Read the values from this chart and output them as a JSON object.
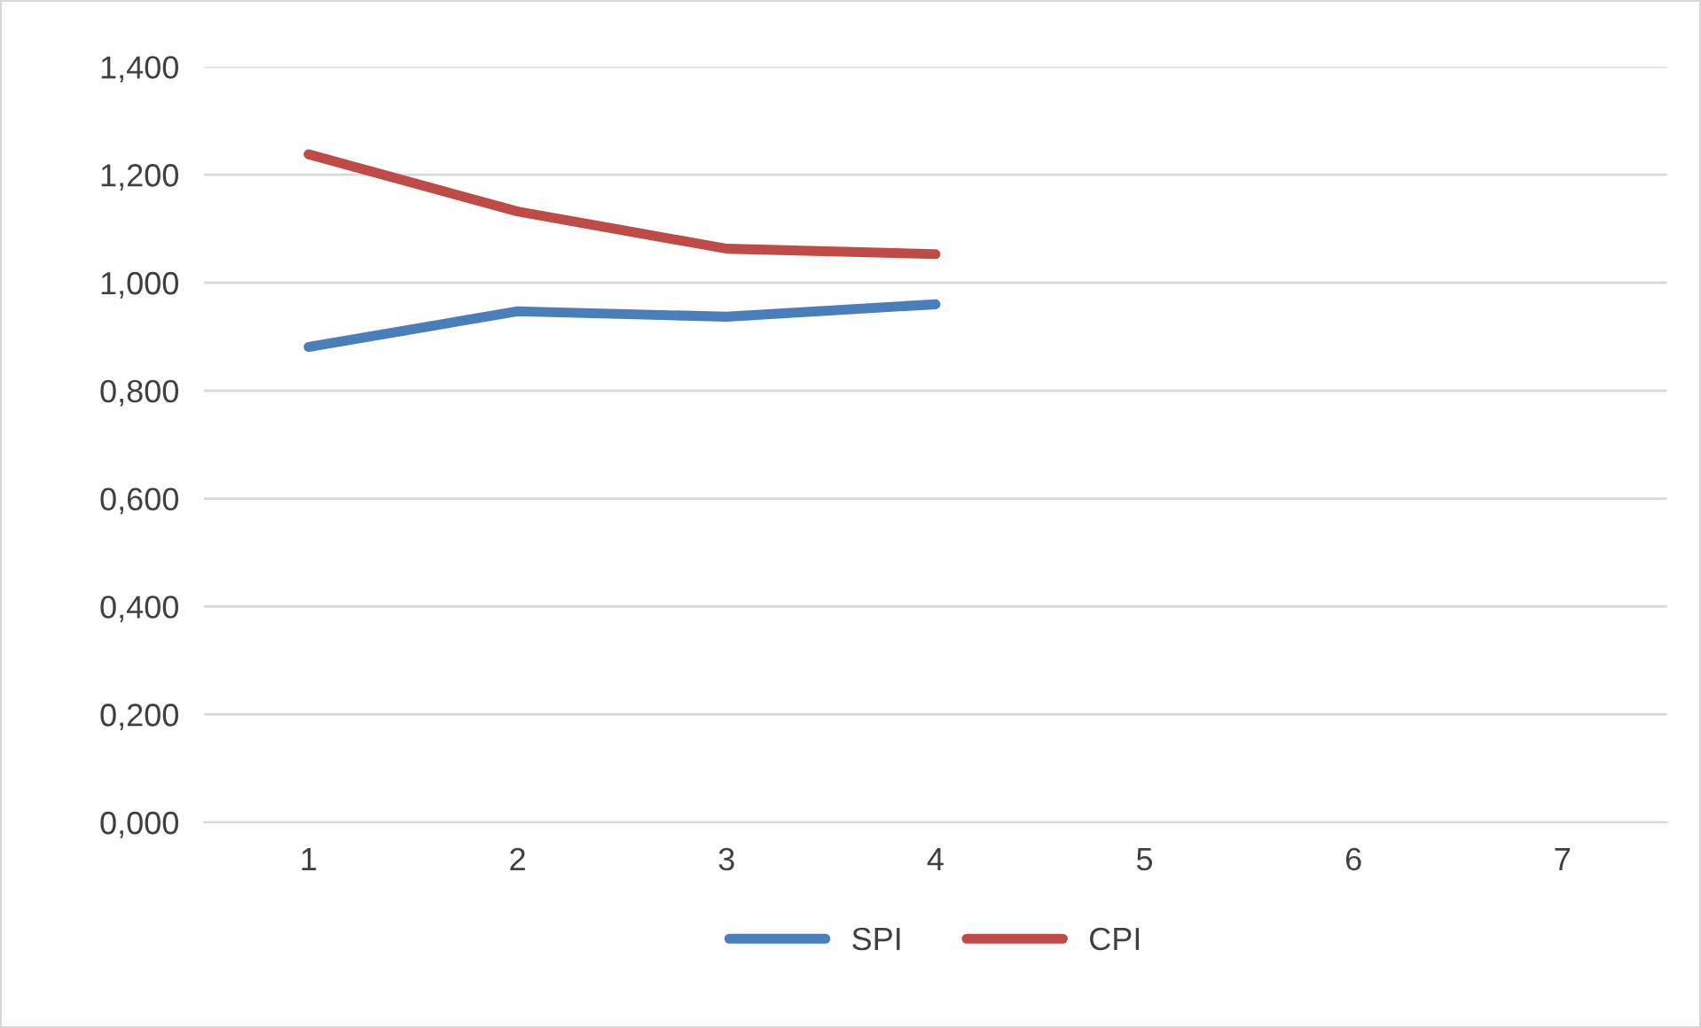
{
  "chart_data": {
    "type": "line",
    "categories": [
      "1",
      "2",
      "3",
      "4",
      "5",
      "6",
      "7"
    ],
    "series": [
      {
        "name": "SPI",
        "color": "#4a7ebb",
        "values": [
          0.881,
          0.947,
          0.937,
          0.96,
          null,
          null,
          null
        ]
      },
      {
        "name": "CPI",
        "color": "#be4b48",
        "values": [
          1.238,
          1.132,
          1.063,
          1.053,
          null,
          null,
          null
        ]
      }
    ],
    "ylim": [
      0,
      1.4
    ],
    "yticks": [
      {
        "value": 0,
        "label": "0,000"
      },
      {
        "value": 0.2,
        "label": "0,200"
      },
      {
        "value": 0.4,
        "label": "0,400"
      },
      {
        "value": 0.6,
        "label": "0,600"
      },
      {
        "value": 0.8,
        "label": "0,800"
      },
      {
        "value": 1.0,
        "label": "1,000"
      },
      {
        "value": 1.2,
        "label": "1,200"
      },
      {
        "value": 1.4,
        "label": "1,400"
      }
    ],
    "grid": "y",
    "legend": "bottom",
    "marker": "none",
    "line_style": "solid"
  }
}
